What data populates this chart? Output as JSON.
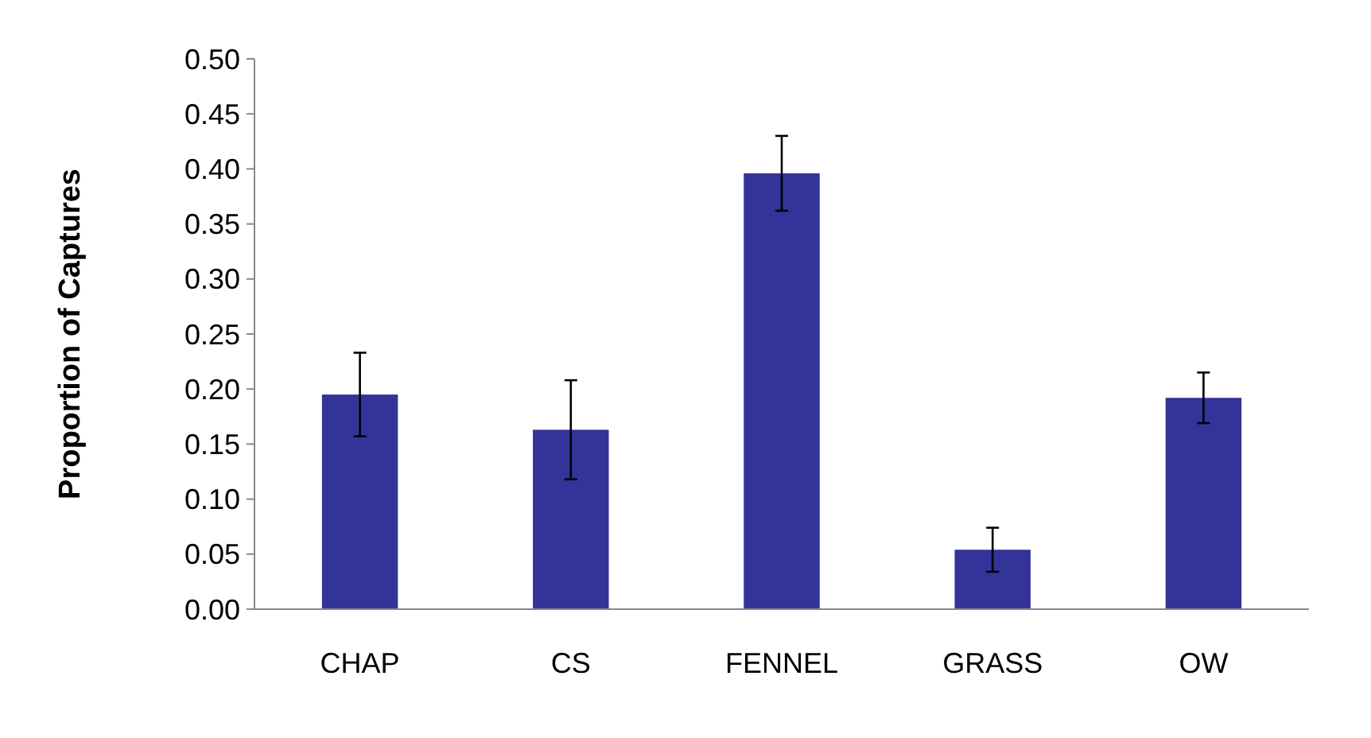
{
  "chart_data": {
    "type": "bar",
    "ylabel": "Proportion of Captures",
    "categories": [
      "CHAP",
      "CS",
      "FENNEL",
      "GRASS",
      "OW"
    ],
    "series": [
      {
        "color": "#333399",
        "values": [
          0.195,
          0.163,
          0.396,
          0.054,
          0.192
        ],
        "errors": [
          0.038,
          0.045,
          0.034,
          0.02,
          0.023
        ]
      }
    ],
    "ylim": [
      0,
      0.5
    ],
    "yticks": [
      {
        "value": 0,
        "label": "0.00"
      },
      {
        "value": 0.05,
        "label": "0.05"
      },
      {
        "value": 0.1,
        "label": "0.10"
      },
      {
        "value": 0.15,
        "label": "0.15"
      },
      {
        "value": 0.2,
        "label": "0.20"
      },
      {
        "value": 0.25,
        "label": "0.25"
      },
      {
        "value": 0.3,
        "label": "0.30"
      },
      {
        "value": 0.35,
        "label": "0.35"
      },
      {
        "value": 0.4,
        "label": "0.40"
      },
      {
        "value": 0.45,
        "label": "0.45"
      },
      {
        "value": 0.5,
        "label": "0.50"
      }
    ],
    "grid": false
  }
}
